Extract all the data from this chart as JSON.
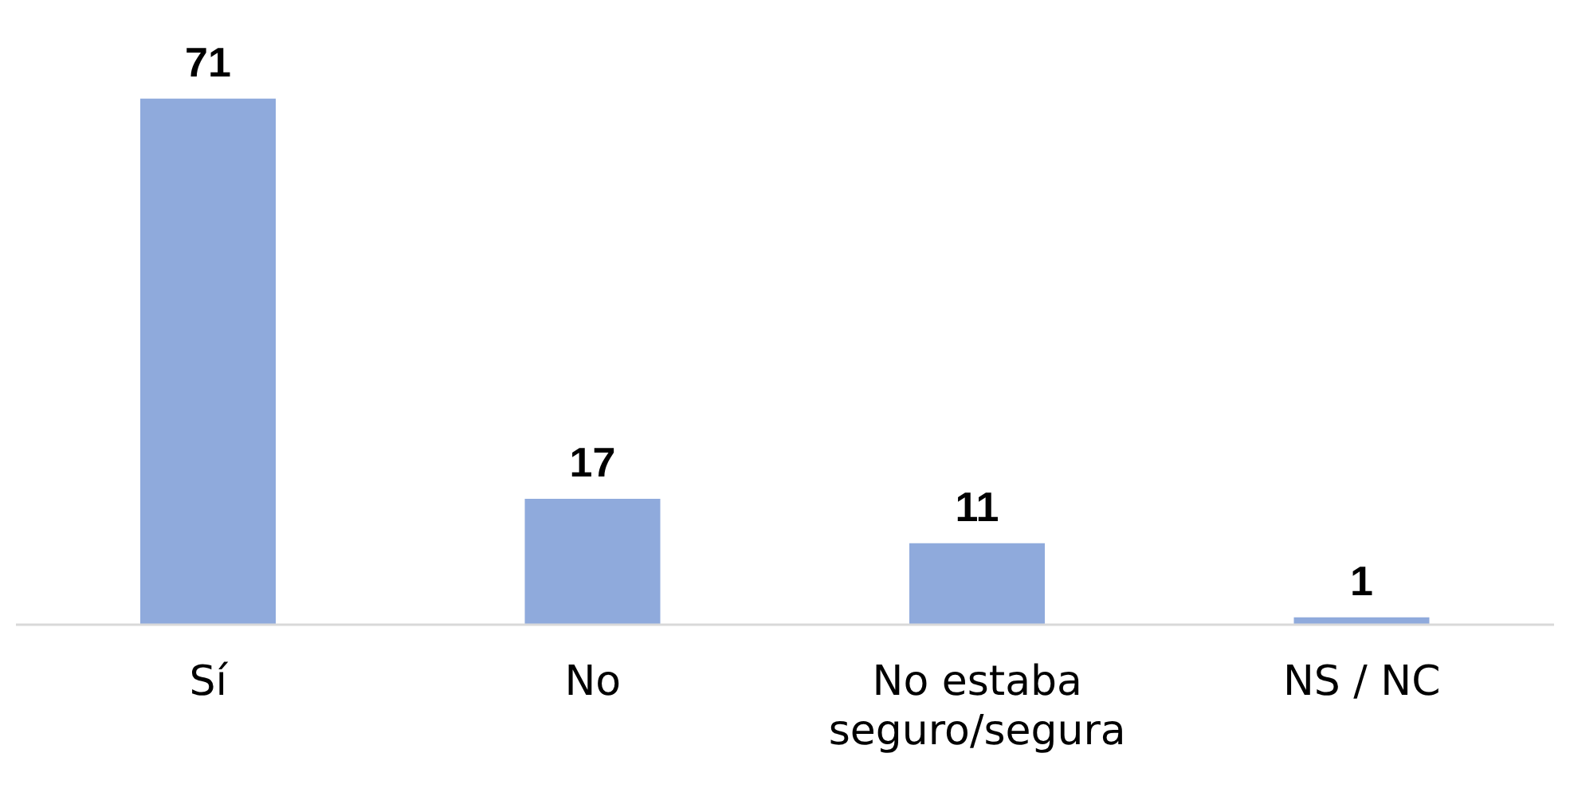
{
  "chart_data": {
    "type": "bar",
    "categories": [
      "Sí",
      "No",
      "No estaba seguro/segura",
      "NS / NC"
    ],
    "values": [
      71,
      17,
      11,
      1
    ],
    "color": "#8faadc",
    "data_labels": true
  }
}
